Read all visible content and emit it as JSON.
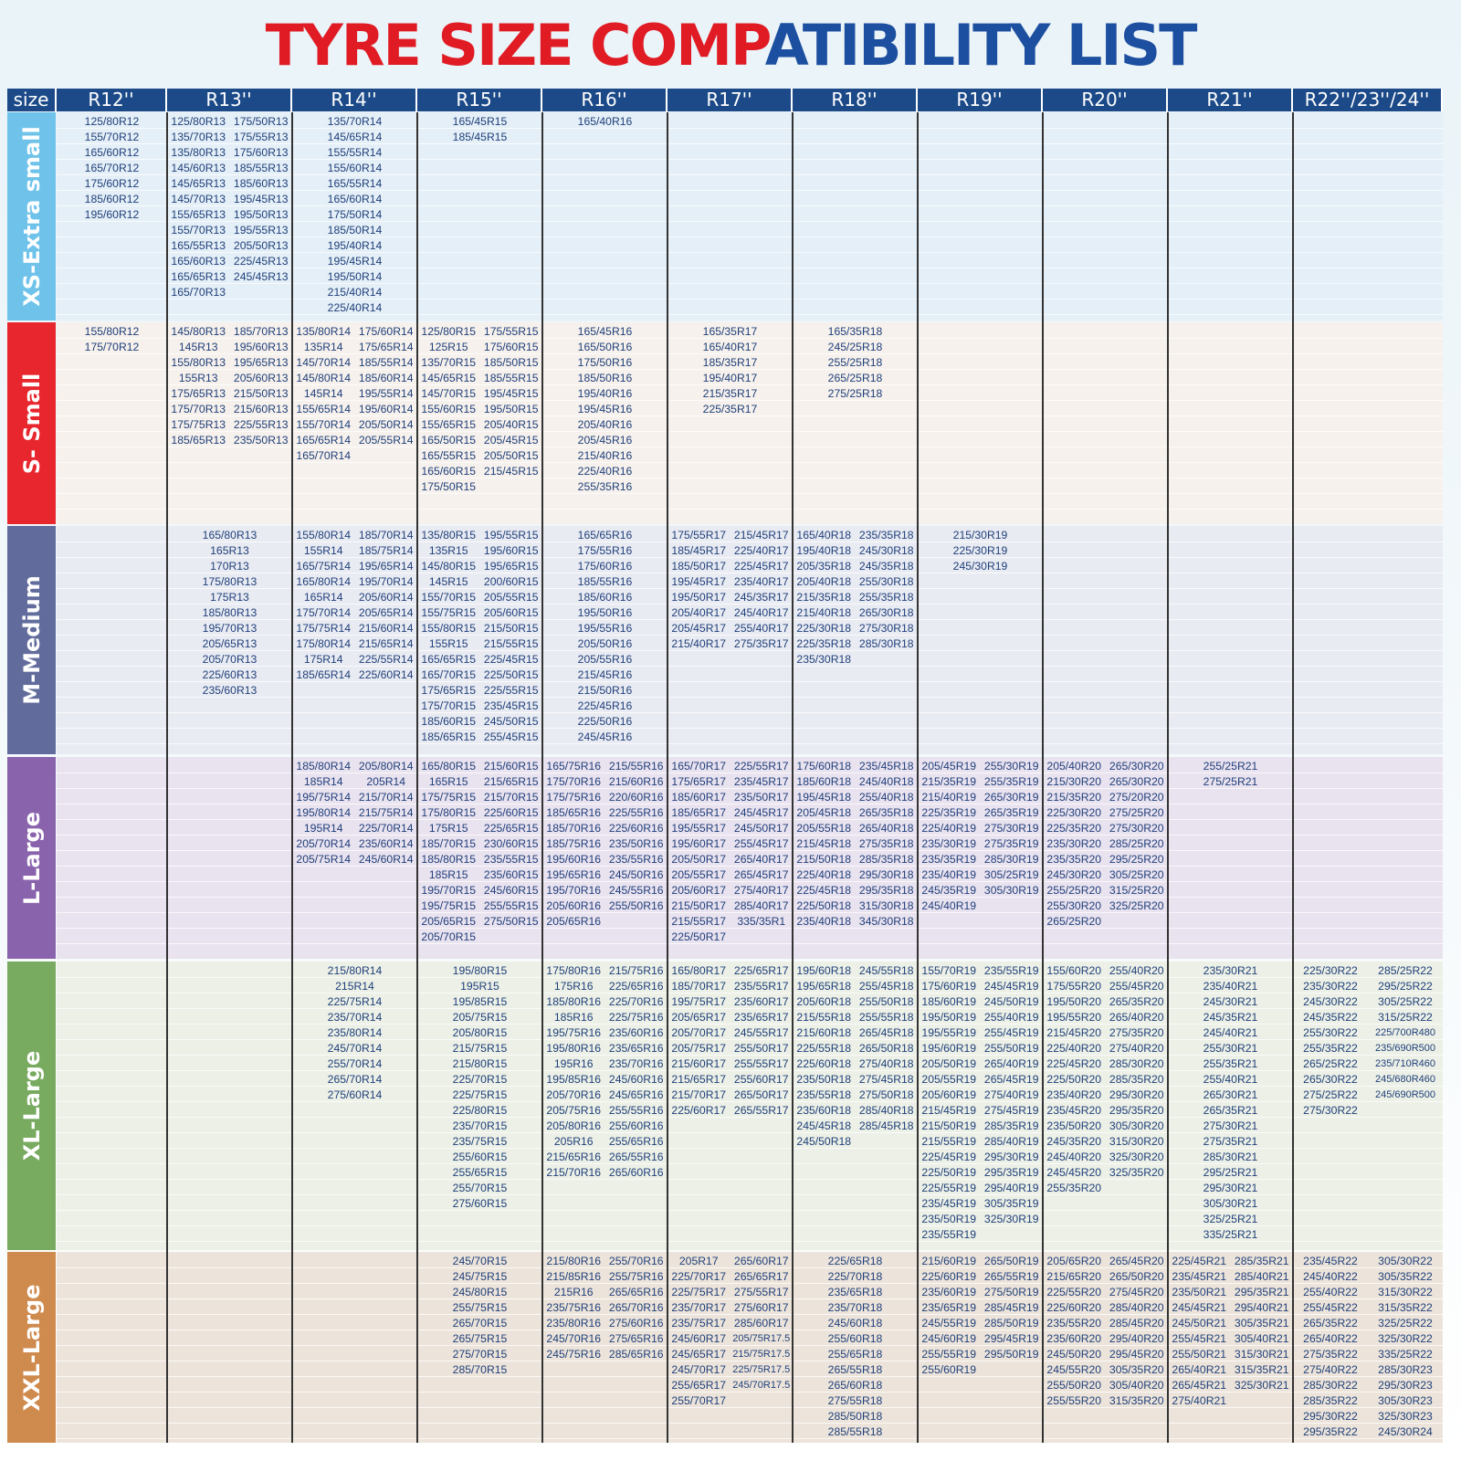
{
  "title": {
    "part1": "TYRE SIZE COMP",
    "part2": "ATIBILITY LIST"
  },
  "header": {
    "size_label": "size",
    "columns": [
      "R12''",
      "R13''",
      "R14''",
      "R15''",
      "R16''",
      "R17''",
      "R18''",
      "R19''",
      "R20''",
      "R21''",
      "R22''/23''/24''"
    ]
  },
  "colors": {
    "header": "#1c4a88",
    "text": "#1f3f7a",
    "xs": "#6fc3ea",
    "s": "#e8262e",
    "m": "#626c9c",
    "l": "#8a63ad",
    "xl": "#78aa5f",
    "xxl": "#cf8a4e"
  },
  "rows": [
    {
      "key": "xs",
      "label": "XS-Extra small",
      "bg": "#e4eff7",
      "color": "#6fc3ea",
      "cells": [
        [
          "125/80R12",
          "155/70R12",
          "165/60R12",
          "165/70R12",
          "175/60R12",
          "185/60R12",
          "195/60R12"
        ],
        [
          "125/80R13",
          "135/70R13",
          "135/80R13",
          "145/60R13",
          "145/65R13",
          "145/70R13",
          "155/65R13",
          "155/70R13",
          "165/55R13",
          "165/60R13",
          "165/65R13",
          "165/70R13",
          "175/50R13",
          "175/55R13",
          "175/60R13",
          "185/55R13",
          "185/60R13",
          "195/45R13",
          "195/50R13",
          "195/55R13",
          "205/50R13",
          "225/45R13",
          "245/45R13"
        ],
        [
          "135/70R14",
          "145/65R14",
          "155/55R14",
          "155/60R14",
          "165/55R14",
          "165/60R14",
          "175/50R14",
          "185/50R14",
          "195/40R14",
          "195/45R14",
          "195/50R14",
          "215/40R14",
          "225/40R14"
        ],
        [
          "165/45R15",
          "185/45R15"
        ],
        [
          "165/40R16"
        ],
        [],
        [],
        [],
        [],
        [],
        []
      ]
    },
    {
      "key": "s",
      "label": "S- Small",
      "bg": "#f6f1ec",
      "color": "#e8262e",
      "cells": [
        [
          "155/80R12",
          "175/70R12"
        ],
        [
          "145/80R13",
          "145R13",
          "155/80R13",
          "155R13",
          "175/65R13",
          "175/70R13",
          "175/75R13",
          "185/65R13",
          "185/70R13",
          "195/60R13",
          "195/65R13",
          "205/60R13",
          "215/50R13",
          "215/60R13",
          "225/55R13",
          "235/50R13"
        ],
        [
          "135/80R14",
          "135R14",
          "145/70R14",
          "145/80R14",
          "145R14",
          "155/65R14",
          "155/70R14",
          "165/65R14",
          "165/70R14",
          "175/60R14",
          "175/65R14",
          "185/55R14",
          "185/60R14",
          "195/55R14",
          "195/60R14",
          "205/50R14",
          "205/55R14"
        ],
        [
          "125/80R15",
          "125R15",
          "135/70R15",
          "145/65R15",
          "145/70R15",
          "155/60R15",
          "155/65R15",
          "165/50R15",
          "165/55R15",
          "165/60R15",
          "175/50R15",
          "175/55R15",
          "175/60R15",
          "185/50R15",
          "185/55R15",
          "195/45R15",
          "195/50R15",
          "205/40R15",
          "205/45R15",
          "205/50R15",
          "215/45R15"
        ],
        [
          "165/45R16",
          "165/50R16",
          "175/50R16",
          "185/50R16",
          "195/40R16",
          "195/45R16",
          "205/40R16",
          "205/45R16",
          "215/40R16",
          "225/40R16",
          "255/35R16"
        ],
        [
          "165/35R17",
          "165/40R17",
          "185/35R17",
          "195/40R17",
          "215/35R17",
          "225/35R17"
        ],
        [
          "165/35R18",
          "245/25R18",
          "255/25R18",
          "265/25R18",
          "275/25R18"
        ],
        [],
        [],
        [],
        []
      ]
    },
    {
      "key": "m",
      "label": "M-Medium",
      "bg": "#e9ebf2",
      "color": "#626c9c",
      "cells": [
        [],
        [
          "165/80R13",
          "165R13",
          "170R13",
          "175/80R13",
          "175R13",
          "185/80R13",
          "195/70R13",
          "205/65R13",
          "205/70R13",
          "225/60R13",
          "235/60R13"
        ],
        [
          "155/80R14",
          "155R14",
          "165/75R14",
          "165/80R14",
          "165R14",
          "175/70R14",
          "175/75R14",
          "175/80R14",
          "175R14",
          "185/65R14",
          "185/70R14",
          "185/75R14",
          "195/65R14",
          "195/70R14",
          "205/60R14",
          "205/65R14",
          "215/60R14",
          "215/65R14",
          "225/55R14",
          "225/60R14"
        ],
        [
          "135/80R15",
          "135R15",
          "145/80R15",
          "145R15",
          "155/70R15",
          "155/75R15",
          "155/80R15",
          "155R15",
          "165/65R15",
          "165/70R15",
          "175/65R15",
          "175/70R15",
          "185/60R15",
          "185/65R15",
          "195/55R15",
          "195/60R15",
          "195/65R15",
          "200/60R15",
          "205/55R15",
          "205/60R15",
          "215/50R15",
          "215/55R15",
          "225/45R15",
          "225/50R15",
          "225/55R15",
          "235/45R15",
          "245/50R15",
          "255/45R15"
        ],
        [
          "165/65R16",
          "175/55R16",
          "175/60R16",
          "185/55R16",
          "185/60R16",
          "195/50R16",
          "195/55R16",
          "205/50R16",
          "205/55R16",
          "215/45R16",
          "215/50R16",
          "225/45R16",
          "225/50R16",
          "245/45R16"
        ],
        [
          "175/55R17",
          "185/45R17",
          "185/50R17",
          "195/45R17",
          "195/50R17",
          "205/40R17",
          "205/45R17",
          "215/40R17",
          "215/45R17",
          "225/40R17",
          "225/45R17",
          "235/40R17",
          "245/35R17",
          "245/40R17",
          "255/40R17",
          "275/35R17"
        ],
        [
          "165/40R18",
          "195/40R18",
          "205/35R18",
          "205/40R18",
          "215/35R18",
          "215/40R18",
          "225/30R18",
          "225/35R18",
          "235/30R18",
          "235/35R18",
          "245/30R18",
          "245/35R18",
          "255/30R18",
          "255/35R18",
          "265/30R18",
          "275/30R18",
          "285/30R18"
        ],
        [
          "215/30R19",
          "225/30R19",
          "245/30R19"
        ],
        [],
        [],
        []
      ]
    },
    {
      "key": "l",
      "label": "L-Large",
      "bg": "#e9e2ef",
      "color": "#8a63ad",
      "cells": [
        [],
        [],
        [
          "185/80R14",
          "185R14",
          "195/75R14",
          "195/80R14",
          "195R14",
          "205/70R14",
          "205/75R14",
          "205/80R14",
          "205R14",
          "215/70R14",
          "215/75R14",
          "225/70R14",
          "235/60R14",
          "245/60R14"
        ],
        [
          "165/80R15",
          "165R15",
          "175/75R15",
          "175/80R15",
          "175R15",
          "185/70R15",
          "185/80R15",
          "185R15",
          "195/70R15",
          "195/75R15",
          "205/65R15",
          "205/70R15",
          "215/60R15",
          "215/65R15",
          "215/70R15",
          "225/60R15",
          "225/65R15",
          "230/60R15",
          "235/55R15",
          "235/60R15",
          "245/60R15",
          "255/55R15",
          "275/50R15"
        ],
        [
          "165/75R16",
          "175/70R16",
          "175/75R16",
          "185/65R16",
          "185/70R16",
          "185/75R16",
          "195/60R16",
          "195/65R16",
          "195/70R16",
          "205/60R16",
          "205/65R16",
          "215/55R16",
          "215/60R16",
          "220/60R16",
          "225/55R16",
          "225/60R16",
          "235/50R16",
          "235/55R16",
          "245/50R16",
          "245/55R16",
          "255/50R16"
        ],
        [
          "165/70R17",
          "175/65R17",
          "185/60R17",
          "185/65R17",
          "195/55R17",
          "195/60R17",
          "205/50R17",
          "205/55R17",
          "205/60R17",
          "215/50R17",
          "215/55R17",
          "225/50R17",
          "225/55R17",
          "235/45R17",
          "235/50R17",
          "245/45R17",
          "245/50R17",
          "255/45R17",
          "265/40R17",
          "265/45R17",
          "275/40R17",
          "285/40R17",
          "335/35R1"
        ],
        [
          "175/60R18",
          "185/60R18",
          "195/45R18",
          "205/45R18",
          "205/55R18",
          "215/45R18",
          "215/50R18",
          "225/40R18",
          "225/45R18",
          "225/50R18",
          "235/40R18",
          "235/45R18",
          "245/40R18",
          "255/40R18",
          "265/35R18",
          "265/40R18",
          "275/35R18",
          "285/35R18",
          "295/30R18",
          "295/35R18",
          "315/30R18",
          "345/30R18"
        ],
        [
          "205/45R19",
          "215/35R19",
          "215/40R19",
          "225/35R19",
          "225/40R19",
          "235/30R19",
          "235/35R19",
          "235/40R19",
          "245/35R19",
          "245/40R19",
          "255/30R19",
          "255/35R19",
          "265/30R19",
          "265/35R19",
          "275/30R19",
          "275/35R19",
          "285/30R19",
          "305/25R19",
          "305/30R19"
        ],
        [
          "205/40R20",
          "215/30R20",
          "215/35R20",
          "225/30R20",
          "225/35R20",
          "235/30R20",
          "235/35R20",
          "245/30R20",
          "255/25R20",
          "255/30R20",
          "265/25R20",
          "265/30R20",
          "265/30R20",
          "275/20R20",
          "275/25R20",
          "275/30R20",
          "285/25R20",
          "295/25R20",
          "305/25R20",
          "315/25R20",
          "325/25R20"
        ],
        [
          "255/25R21",
          "275/25R21"
        ],
        []
      ]
    },
    {
      "key": "xl",
      "label": "XL-Large",
      "bg": "#ecf0e6",
      "color": "#78aa5f",
      "cells": [
        [],
        [],
        [
          "215/80R14",
          "215R14",
          "225/75R14",
          "235/70R14",
          "235/80R14",
          "245/70R14",
          "255/70R14",
          "265/70R14",
          "275/60R14"
        ],
        [
          "195/80R15",
          "195R15",
          "195/85R15",
          "205/75R15",
          "205/80R15",
          "215/75R15",
          "215/80R15",
          "225/70R15",
          "225/75R15",
          "225/80R15",
          "235/70R15",
          "235/75R15",
          "255/60R15",
          "255/65R15",
          "255/70R15",
          "275/60R15"
        ],
        [
          "175/80R16",
          "175R16",
          "185/80R16",
          "185R16",
          "195/75R16",
          "195/80R16",
          "195R16",
          "195/85R16",
          "205/70R16",
          "205/75R16",
          "205/80R16",
          "205R16",
          "215/65R16",
          "215/70R16",
          "215/75R16",
          "225/65R16",
          "225/70R16",
          "225/75R16",
          "235/60R16",
          "235/65R16",
          "235/70R16",
          "245/60R16",
          "245/65R16",
          "255/55R16",
          "255/60R16",
          "255/65R16",
          "265/55R16",
          "265/60R16"
        ],
        [
          "165/80R17",
          "185/70R17",
          "195/75R17",
          "205/65R17",
          "205/70R17",
          "205/75R17",
          "215/60R17",
          "215/65R17",
          "215/70R17",
          "225/60R17",
          "225/65R17",
          "235/55R17",
          "235/60R17",
          "235/65R17",
          "245/55R17",
          "255/50R17",
          "255/55R17",
          "255/60R17",
          "265/50R17",
          "265/55R17"
        ],
        [
          "195/60R18",
          "195/65R18",
          "205/60R18",
          "215/55R18",
          "215/60R18",
          "225/55R18",
          "225/60R18",
          "235/50R18",
          "235/55R18",
          "235/60R18",
          "245/45R18",
          "245/50R18",
          "245/55R18",
          "255/45R18",
          "255/50R18",
          "255/55R18",
          "265/45R18",
          "265/50R18",
          "275/40R18",
          "275/45R18",
          "275/50R18",
          "285/40R18",
          "285/45R18"
        ],
        [
          "155/70R19",
          "175/60R19",
          "185/60R19",
          "195/50R19",
          "195/55R19",
          "195/60R19",
          "205/50R19",
          "205/55R19",
          "205/60R19",
          "215/45R19",
          "215/50R19",
          "215/55R19",
          "225/45R19",
          "225/50R19",
          "225/55R19",
          "235/45R19",
          "235/50R19",
          "235/55R19",
          "235/55R19",
          "245/45R19",
          "245/50R19",
          "255/40R19",
          "255/45R19",
          "255/50R19",
          "265/40R19",
          "265/45R19",
          "275/40R19",
          "275/45R19",
          "285/35R19",
          "285/40R19",
          "295/30R19",
          "295/35R19",
          "295/40R19",
          "305/35R19",
          "325/30R19"
        ],
        [
          "155/60R20",
          "175/55R20",
          "195/50R20",
          "195/55R20",
          "215/45R20",
          "225/40R20",
          "225/45R20",
          "225/50R20",
          "235/40R20",
          "235/45R20",
          "235/50R20",
          "245/35R20",
          "245/40R20",
          "245/45R20",
          "255/35R20",
          "255/40R20",
          "255/45R20",
          "265/35R20",
          "265/40R20",
          "275/35R20",
          "275/40R20",
          "285/30R20",
          "285/35R20",
          "295/30R20",
          "295/35R20",
          "305/30R20",
          "315/30R20",
          "325/30R20",
          "325/35R20"
        ],
        [
          "235/30R21",
          "235/40R21",
          "245/30R21",
          "245/35R21",
          "245/40R21",
          "255/30R21",
          "255/35R21",
          "255/40R21",
          "265/30R21",
          "265/35R21",
          "275/30R21",
          "275/35R21",
          "285/30R21",
          "295/25R21",
          "295/30R21",
          "305/30R21",
          "325/25R21",
          "335/25R21"
        ],
        [
          "225/30R22",
          "235/30R22",
          "245/30R22",
          "245/35R22",
          "255/30R22",
          "255/35R22",
          "265/25R22",
          "265/30R22",
          "275/25R22",
          "275/30R22",
          "285/25R22",
          "295/25R22",
          "305/25R22",
          "315/25R22",
          "225/700R480",
          "235/690R500",
          "235/710R460",
          "245/680R460",
          "245/690R500"
        ]
      ]
    },
    {
      "key": "xxl",
      "label": "XXL-Large",
      "bg": "#ece4da",
      "color": "#cf8a4e",
      "cells": [
        [],
        [],
        [],
        [
          "245/70R15",
          "245/75R15",
          "245/80R15",
          "255/75R15",
          "265/70R15",
          "265/75R15",
          "275/70R15",
          "285/70R15"
        ],
        [
          "215/80R16",
          "215/85R16",
          "215R16",
          "235/75R16",
          "235/80R16",
          "245/70R16",
          "245/75R16",
          "255/70R16",
          "255/75R16",
          "265/65R16",
          "265/70R16",
          "275/60R16",
          "275/65R16",
          "285/65R16"
        ],
        [
          "205R17",
          "225/70R17",
          "225/75R17",
          "235/70R17",
          "235/75R17",
          "245/60R17",
          "245/65R17",
          "245/70R17",
          "255/65R17",
          "255/70R17",
          "265/60R17",
          "265/65R17",
          "275/55R17",
          "275/60R17",
          "285/60R17",
          "205/75R17.5",
          "215/75R17.5",
          "225/75R17.5",
          "245/70R17.5"
        ],
        [
          "225/65R18",
          "225/70R18",
          "235/65R18",
          "235/70R18",
          "245/60R18",
          "255/60R18",
          "255/65R18",
          "265/55R18",
          "265/60R18",
          "275/55R18",
          "285/50R18",
          "285/55R18"
        ],
        [
          "215/60R19",
          "225/60R19",
          "235/60R19",
          "235/65R19",
          "245/55R19",
          "245/60R19",
          "255/55R19",
          "255/60R19",
          "265/50R19",
          "265/55R19",
          "275/50R19",
          "285/45R19",
          "285/50R19",
          "295/45R19",
          "295/50R19"
        ],
        [
          "205/65R20",
          "215/65R20",
          "225/55R20",
          "225/60R20",
          "235/55R20",
          "235/60R20",
          "245/50R20",
          "245/55R20",
          "255/50R20",
          "255/55R20",
          "265/45R20",
          "265/50R20",
          "275/45R20",
          "285/40R20",
          "285/45R20",
          "295/40R20",
          "295/45R20",
          "305/35R20",
          "305/40R20",
          "315/35R20"
        ],
        [
          "225/45R21",
          "235/45R21",
          "235/50R21",
          "245/45R21",
          "245/50R21",
          "255/45R21",
          "255/50R21",
          "265/40R21",
          "265/45R21",
          "275/40R21",
          "285/35R21",
          "285/40R21",
          "295/35R21",
          "295/40R21",
          "305/35R21",
          "305/40R21",
          "315/30R21",
          "315/35R21",
          "325/30R21"
        ],
        [
          "235/45R22",
          "245/40R22",
          "255/40R22",
          "255/45R22",
          "265/35R22",
          "265/40R22",
          "275/35R22",
          "275/40R22",
          "285/30R22",
          "285/35R22",
          "295/30R22",
          "295/35R22",
          "305/30R22",
          "305/35R22",
          "315/30R22",
          "315/35R22",
          "325/25R22",
          "325/30R22",
          "335/25R22",
          "285/30R23",
          "295/30R23",
          "305/30R23",
          "325/30R23",
          "245/30R24"
        ]
      ]
    }
  ]
}
